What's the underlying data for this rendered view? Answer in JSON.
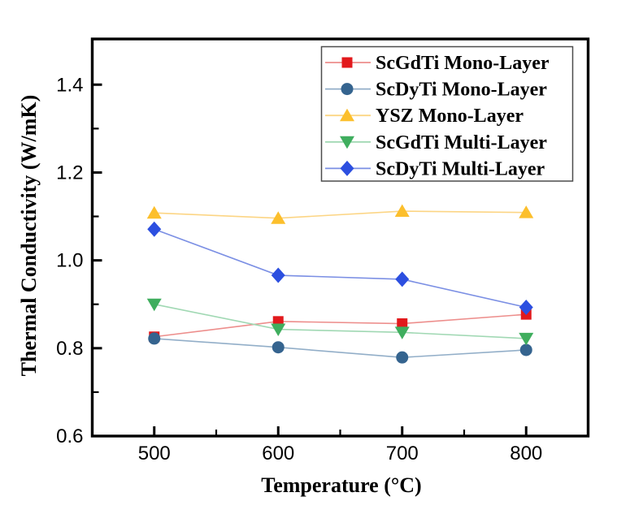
{
  "figure": {
    "background": "#ffffff",
    "axis_color": "#000000",
    "legend_border_color": "#4c4c4c"
  },
  "chart_data": {
    "type": "line",
    "title": "",
    "xlabel": "Temperature (°C)",
    "ylabel": "Thermal Conductivity (W/mK)",
    "grid": false,
    "legend_position": "top-right",
    "xlim": [
      450,
      850
    ],
    "ylim": [
      0.6,
      1.504
    ],
    "x": [
      500,
      600,
      700,
      800
    ],
    "x_ticks": [
      500,
      600,
      700,
      800
    ],
    "x_minor_ticks": [
      550,
      650,
      750
    ],
    "y_ticks": [
      0.6,
      0.8,
      1.0,
      1.2,
      1.4
    ],
    "y_minor_ticks": [
      0.7,
      0.9,
      1.1,
      1.3
    ],
    "series": [
      {
        "name": "ScGdTi Mono-Layer",
        "marker": "square",
        "color": "#e2191c",
        "line_color": "#ed8e8c",
        "values": [
          0.826,
          0.861,
          0.856,
          0.877
        ]
      },
      {
        "name": "ScDyTi Mono-Layer",
        "marker": "circle",
        "color": "#35648f",
        "line_color": "#92aec8",
        "values": [
          0.822,
          0.802,
          0.779,
          0.796
        ]
      },
      {
        "name": "YSZ Mono-Layer",
        "marker": "triangle-up",
        "color": "#fcbf2c",
        "line_color": "#fcd584",
        "values": [
          1.108,
          1.096,
          1.112,
          1.109
        ]
      },
      {
        "name": "ScGdTi Multi-Layer",
        "marker": "triangle-down",
        "color": "#3fae5e",
        "line_color": "#a0d8b3",
        "values": [
          0.9,
          0.843,
          0.836,
          0.822
        ]
      },
      {
        "name": "ScDyTi Multi-Layer",
        "marker": "diamond",
        "color": "#2c4fe0",
        "line_color": "#7b8fe4",
        "values": [
          1.071,
          0.966,
          0.957,
          0.893
        ]
      }
    ]
  }
}
